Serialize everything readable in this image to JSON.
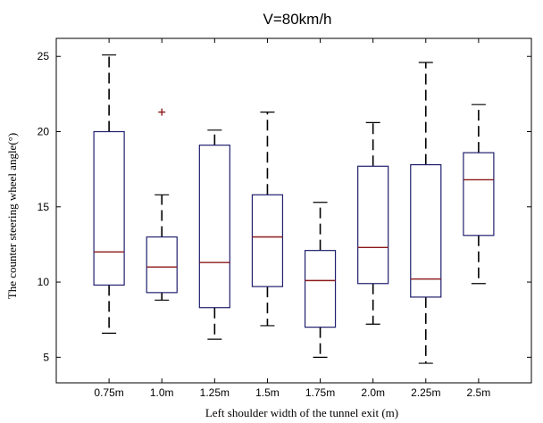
{
  "chart_data": {
    "type": "box",
    "title": "V=80km/h",
    "xlabel": "Left shoulder width of the tunnel exit (m)",
    "ylabel": "The counter steering wheel angle(°)",
    "categories": [
      "0.75m",
      "1.0m",
      "1.25m",
      "1.5m",
      "1.75m",
      "2.0m",
      "2.25m",
      "2.5m"
    ],
    "ylim": [
      3.3,
      26.2
    ],
    "yticks": [
      5,
      10,
      15,
      20,
      25
    ],
    "grid": false,
    "boxes": [
      {
        "whisker_low": 6.6,
        "q1": 9.8,
        "median": 12.0,
        "q3": 20.0,
        "whisker_high": 25.1,
        "outliers": []
      },
      {
        "whisker_low": 8.8,
        "q1": 9.3,
        "median": 11.0,
        "q3": 13.0,
        "whisker_high": 15.8,
        "outliers": [
          21.3
        ]
      },
      {
        "whisker_low": 6.2,
        "q1": 8.3,
        "median": 11.3,
        "q3": 19.1,
        "whisker_high": 20.1,
        "outliers": []
      },
      {
        "whisker_low": 7.1,
        "q1": 9.7,
        "median": 13.0,
        "q3": 15.8,
        "whisker_high": 21.3,
        "outliers": []
      },
      {
        "whisker_low": 5.0,
        "q1": 7.0,
        "median": 10.1,
        "q3": 12.1,
        "whisker_high": 15.3,
        "outliers": []
      },
      {
        "whisker_low": 7.2,
        "q1": 9.9,
        "median": 12.3,
        "q3": 17.7,
        "whisker_high": 20.6,
        "outliers": []
      },
      {
        "whisker_low": 4.6,
        "q1": 9.0,
        "median": 10.2,
        "q3": 17.8,
        "whisker_high": 24.6,
        "outliers": []
      },
      {
        "whisker_low": 9.9,
        "q1": 13.1,
        "median": 16.8,
        "q3": 18.6,
        "whisker_high": 21.8,
        "outliers": []
      }
    ],
    "colors": {
      "box": "#1f1f6e",
      "whisker": "#000000",
      "median": "#8b1a1a",
      "outlier": "#8b1a1a",
      "axis": "#000000"
    }
  }
}
